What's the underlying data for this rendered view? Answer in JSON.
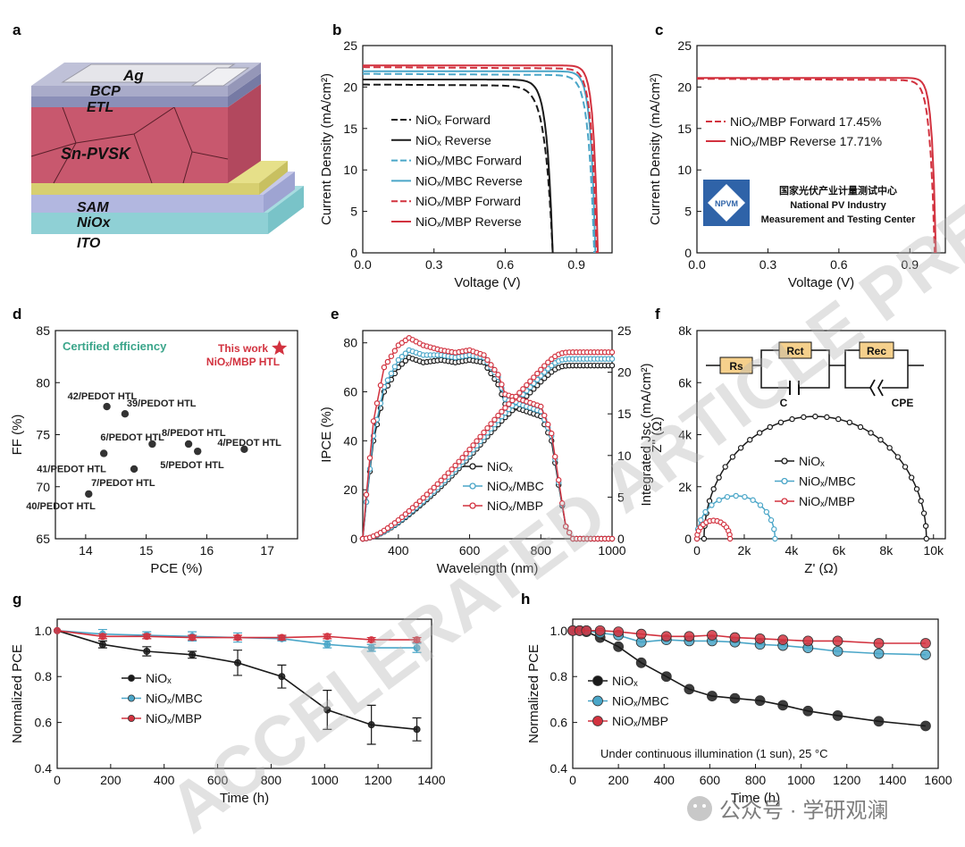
{
  "panel_letters": [
    "a",
    "b",
    "c",
    "d",
    "e",
    "f",
    "g",
    "h"
  ],
  "watermark": "ACCELERATED ARTICLE PREVIEW",
  "footer": {
    "text": "公众号 · 学研观澜"
  },
  "panel_a": {
    "layers": [
      "Ag",
      "BCP",
      "ETL",
      "Sn-PVSK",
      "SAM",
      "NiOx",
      "ITO"
    ]
  },
  "chart_data": [
    {
      "id": "b",
      "type": "line",
      "xlabel": "Voltage (V)",
      "ylabel": "Current Density (mA/cm²)",
      "xlim": [
        0,
        1.05
      ],
      "ylim": [
        0,
        25
      ],
      "xticks": [
        "0.0",
        "0.3",
        "0.6",
        "0.9"
      ],
      "yticks": [
        "0",
        "5",
        "10",
        "15",
        "20",
        "25"
      ],
      "series": [
        {
          "name": "NiOx Forward",
          "color": "#1a1a1a",
          "dash": true,
          "jsc": 20.3,
          "voc": 0.8,
          "k": 0.032
        },
        {
          "name": "NiOx Reverse",
          "color": "#1a1a1a",
          "dash": false,
          "jsc": 20.9,
          "voc": 0.8,
          "k": 0.024
        },
        {
          "name": "NiOx/MBC Forward",
          "color": "#4aa6c8",
          "dash": true,
          "jsc": 21.6,
          "voc": 0.975,
          "k": 0.024
        },
        {
          "name": "NiOx/MBC Reverse",
          "color": "#4aa6c8",
          "dash": false,
          "jsc": 21.9,
          "voc": 0.98,
          "k": 0.02
        },
        {
          "name": "NiOx/MBP Forward",
          "color": "#d2323f",
          "dash": true,
          "jsc": 22.4,
          "voc": 0.985,
          "k": 0.021
        },
        {
          "name": "NiOx/MBP Reverse",
          "color": "#d2323f",
          "dash": false,
          "jsc": 22.6,
          "voc": 0.99,
          "k": 0.018
        }
      ]
    },
    {
      "id": "c",
      "type": "line",
      "xlabel": "Voltage (V)",
      "ylabel": "Current Density (mA/cm²)",
      "xlim": [
        0,
        1.05
      ],
      "ylim": [
        0,
        25
      ],
      "xticks": [
        "0.0",
        "0.3",
        "0.6",
        "0.9"
      ],
      "yticks": [
        "0",
        "5",
        "10",
        "15",
        "20",
        "25"
      ],
      "series": [
        {
          "name": "NiOx/MBP Forward 17.45%",
          "color": "#d2323f",
          "dash": true,
          "jsc": 21.0,
          "voc": 1.005,
          "k": 0.02
        },
        {
          "name": "NiOx/MBP Reverse 17.71%",
          "color": "#d2323f",
          "dash": false,
          "jsc": 21.1,
          "voc": 1.01,
          "k": 0.016
        }
      ],
      "certificate": {
        "logo": "NPVM",
        "cn": "国家光伏产业计量测试中心",
        "en1": "National PV Industry",
        "en2": "Measurement and Testing Center"
      }
    },
    {
      "id": "d",
      "type": "scatter",
      "xlabel": "PCE (%)",
      "ylabel": "FF (%)",
      "xlim": [
        13.5,
        17.5
      ],
      "ylim": [
        65,
        85
      ],
      "xticks": [
        "14",
        "15",
        "16",
        "17"
      ],
      "yticks": [
        "65",
        "70",
        "75",
        "80",
        "85"
      ],
      "note": "Certified efficiency",
      "points": [
        {
          "x": 14.35,
          "y": 77.7,
          "label": "42/PEDOT HTL"
        },
        {
          "x": 14.65,
          "y": 77.0,
          "label": "39/PEDOT HTL"
        },
        {
          "x": 15.1,
          "y": 74.1,
          "label": "6/PEDOT HTL"
        },
        {
          "x": 15.7,
          "y": 74.1,
          "label": "8/PEDOT HTL"
        },
        {
          "x": 16.62,
          "y": 73.6,
          "label": "4/PEDOT HTL"
        },
        {
          "x": 15.85,
          "y": 73.4,
          "label": "5/PEDOT HTL"
        },
        {
          "x": 14.3,
          "y": 73.2,
          "label": "41/PEDOT HTL"
        },
        {
          "x": 14.8,
          "y": 71.7,
          "label": "7/PEDOT HTL"
        },
        {
          "x": 14.05,
          "y": 69.3,
          "label": "40/PEDOT HTL"
        }
      ],
      "highlight": {
        "x": 17.2,
        "y": 83.3,
        "label1": "This work",
        "label2": "NiOx/MBP HTL"
      }
    },
    {
      "id": "e",
      "type": "line",
      "xlabel": "Wavelength (nm)",
      "ylabel": "IPCE (%)",
      "y2label": "Integrated Jsc (mA/cm²)",
      "xlim": [
        300,
        1000
      ],
      "ylim": [
        0,
        85
      ],
      "y2lim": [
        0,
        25
      ],
      "xticks": [
        "400",
        "600",
        "800",
        "1000"
      ],
      "yticks": [
        "0",
        "20",
        "40",
        "60",
        "80"
      ],
      "y2ticks": [
        "0",
        "5",
        "10",
        "15",
        "20",
        "25"
      ],
      "series": [
        {
          "name": "NiOx",
          "color": "#1a1a1a",
          "ipce": [
            [
              300,
              0
            ],
            [
              310,
              15
            ],
            [
              330,
              40
            ],
            [
              360,
              60
            ],
            [
              400,
              70
            ],
            [
              430,
              74
            ],
            [
              470,
              72
            ],
            [
              520,
              73
            ],
            [
              560,
              72
            ],
            [
              600,
              73
            ],
            [
              640,
              72
            ],
            [
              680,
              63
            ],
            [
              700,
              55
            ],
            [
              720,
              54
            ],
            [
              760,
              52
            ],
            [
              800,
              50
            ],
            [
              830,
              40
            ],
            [
              850,
              22
            ],
            [
              870,
              5
            ],
            [
              890,
              0
            ],
            [
              1000,
              0
            ]
          ],
          "jsc_end": 20.8
        },
        {
          "name": "NiOx/MBC",
          "color": "#4aa6c8",
          "ipce": [
            [
              300,
              0
            ],
            [
              310,
              15
            ],
            [
              330,
              42
            ],
            [
              360,
              62
            ],
            [
              400,
              73
            ],
            [
              430,
              77
            ],
            [
              470,
              75
            ],
            [
              520,
              75
            ],
            [
              560,
              74
            ],
            [
              600,
              75
            ],
            [
              640,
              74
            ],
            [
              680,
              66
            ],
            [
              700,
              57
            ],
            [
              720,
              56
            ],
            [
              760,
              54
            ],
            [
              800,
              52
            ],
            [
              830,
              42
            ],
            [
              850,
              23
            ],
            [
              870,
              5
            ],
            [
              890,
              0
            ],
            [
              1000,
              0
            ]
          ],
          "jsc_end": 21.6
        },
        {
          "name": "NiOx/MBP",
          "color": "#d2323f",
          "ipce": [
            [
              300,
              0
            ],
            [
              310,
              18
            ],
            [
              330,
              48
            ],
            [
              360,
              70
            ],
            [
              400,
              79
            ],
            [
              430,
              82
            ],
            [
              470,
              79
            ],
            [
              520,
              77
            ],
            [
              560,
              76
            ],
            [
              600,
              77
            ],
            [
              640,
              75
            ],
            [
              680,
              67
            ],
            [
              700,
              59
            ],
            [
              720,
              58
            ],
            [
              760,
              56
            ],
            [
              800,
              54
            ],
            [
              830,
              43
            ],
            [
              850,
              24
            ],
            [
              870,
              5
            ],
            [
              890,
              0
            ],
            [
              1000,
              0
            ]
          ],
          "jsc_end": 22.4
        }
      ]
    },
    {
      "id": "f",
      "type": "scatter",
      "xlabel": "Z' (Ω)",
      "ylabel": "Z'' (Ω)",
      "xlim": [
        0,
        10500
      ],
      "ylim": [
        0,
        8000
      ],
      "xticks": [
        "0",
        "2k",
        "4k",
        "6k",
        "8k",
        "10k"
      ],
      "yticks": [
        "0",
        "2k",
        "4k",
        "6k",
        "8k"
      ],
      "circuit": {
        "rs": "Rs",
        "rct": "Rct",
        "rec": "Rec",
        "c": "C",
        "cpe": "CPE"
      },
      "series": [
        {
          "name": "NiOx",
          "color": "#1a1a1a",
          "center": 5000,
          "radius": 4700
        },
        {
          "name": "NiOx/MBC",
          "color": "#4aa6c8",
          "center": 1650,
          "radius": 1650
        },
        {
          "name": "NiOx/MBP",
          "color": "#d2323f",
          "center": 700,
          "radius": 700
        }
      ]
    },
    {
      "id": "g",
      "type": "line",
      "xlabel": "Time (h)",
      "ylabel": "Normalized PCE",
      "xlim": [
        0,
        1400
      ],
      "ylim": [
        0.4,
        1.05
      ],
      "xticks": [
        "0",
        "200",
        "400",
        "600",
        "800",
        "1000",
        "1200",
        "1400"
      ],
      "yticks": [
        "0.4",
        "0.6",
        "0.8",
        "1.0"
      ],
      "series": [
        {
          "name": "NiOx",
          "color": "#1a1a1a",
          "x": [
            0,
            170,
            335,
            505,
            675,
            840,
            1010,
            1175,
            1345
          ],
          "y": [
            1.0,
            0.94,
            0.91,
            0.895,
            0.86,
            0.8,
            0.655,
            0.59,
            0.57
          ],
          "err": [
            0,
            0.015,
            0.02,
            0.015,
            0.055,
            0.05,
            0.085,
            0.085,
            0.05
          ]
        },
        {
          "name": "NiOx/MBC",
          "color": "#4aa6c8",
          "x": [
            0,
            170,
            335,
            505,
            675,
            840,
            1010,
            1175,
            1345
          ],
          "y": [
            1.0,
            0.985,
            0.98,
            0.975,
            0.97,
            0.965,
            0.94,
            0.925,
            0.925
          ],
          "err": [
            0,
            0.02,
            0.015,
            0.02,
            0.02,
            0.01,
            0.015,
            0.015,
            0.02
          ]
        },
        {
          "name": "NiOx/MBP",
          "color": "#d2323f",
          "x": [
            0,
            170,
            335,
            505,
            675,
            840,
            1010,
            1175,
            1345
          ],
          "y": [
            1.0,
            0.975,
            0.975,
            0.97,
            0.97,
            0.97,
            0.975,
            0.96,
            0.96
          ],
          "err": [
            0,
            0.01,
            0.01,
            0.01,
            0.01,
            0.01,
            0.01,
            0.01,
            0.01
          ]
        }
      ]
    },
    {
      "id": "h",
      "type": "line",
      "xlabel": "Time (h)",
      "ylabel": "Normalized PCE",
      "xlim": [
        0,
        1600
      ],
      "ylim": [
        0.4,
        1.05
      ],
      "xticks": [
        "0",
        "200",
        "400",
        "600",
        "800",
        "1000",
        "1200",
        "1400",
        "1600"
      ],
      "yticks": [
        "0.4",
        "0.6",
        "0.8",
        "1.0"
      ],
      "note": "Under continuous  illumination (1 sun), 25 °C",
      "series": [
        {
          "name": "NiOx",
          "color": "#1a1a1a",
          "x": [
            0,
            30,
            60,
            120,
            200,
            300,
            410,
            510,
            610,
            710,
            820,
            920,
            1030,
            1160,
            1340,
            1545
          ],
          "y": [
            1.0,
            1.0,
            0.995,
            0.97,
            0.93,
            0.86,
            0.8,
            0.745,
            0.715,
            0.705,
            0.695,
            0.675,
            0.65,
            0.63,
            0.605,
            0.585
          ]
        },
        {
          "name": "NiOx/MBC",
          "color": "#4aa6c8",
          "x": [
            0,
            30,
            60,
            120,
            200,
            300,
            410,
            510,
            610,
            710,
            820,
            920,
            1030,
            1160,
            1340,
            1545
          ],
          "y": [
            1.0,
            1.0,
            1.0,
            0.99,
            0.98,
            0.95,
            0.96,
            0.955,
            0.955,
            0.95,
            0.94,
            0.935,
            0.925,
            0.91,
            0.9,
            0.895
          ]
        },
        {
          "name": "NiOx/MBP",
          "color": "#d2323f",
          "x": [
            0,
            30,
            60,
            120,
            200,
            300,
            410,
            510,
            610,
            710,
            820,
            920,
            1030,
            1160,
            1340,
            1545
          ],
          "y": [
            1.0,
            1.0,
            1.0,
            1.0,
            0.995,
            0.985,
            0.975,
            0.975,
            0.98,
            0.97,
            0.965,
            0.96,
            0.955,
            0.955,
            0.945,
            0.945
          ]
        }
      ]
    }
  ]
}
